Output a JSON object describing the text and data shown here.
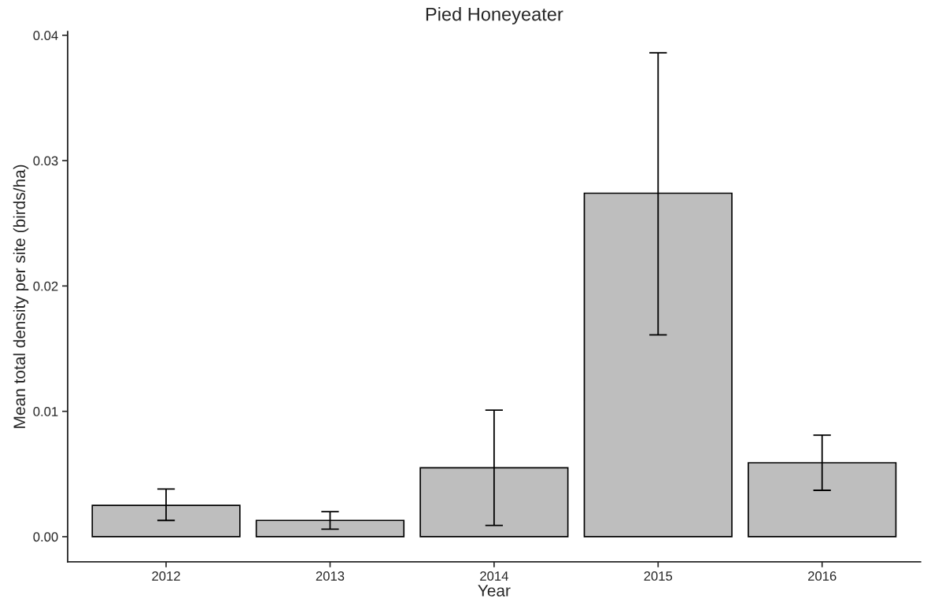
{
  "chart_data": {
    "type": "bar",
    "title": "Pied Honeyeater",
    "xlabel": "Year",
    "ylabel": "Mean total density per site (birds/ha)",
    "categories": [
      "2012",
      "2013",
      "2014",
      "2015",
      "2016"
    ],
    "series": [
      {
        "color": "#bebebe",
        "values": [
          0.0025,
          0.0013,
          0.0055,
          0.0274,
          0.0059
        ],
        "errors": [
          [
            0.0013,
            0.0038
          ],
          [
            0.0006,
            0.002
          ],
          [
            0.0009,
            0.0101
          ],
          [
            0.0161,
            0.0386
          ],
          [
            0.0037,
            0.0081
          ]
        ]
      }
    ],
    "ylim": [
      -0.002,
      0.0403
    ],
    "yticks": [
      {
        "value": 0,
        "label": "0.00"
      },
      {
        "value": 0.01,
        "label": "0.01"
      },
      {
        "value": 0.02,
        "label": "0.02"
      },
      {
        "value": 0.03,
        "label": "0.03"
      },
      {
        "value": 0.04,
        "label": "0.04"
      }
    ],
    "grid": false,
    "legend": false
  }
}
